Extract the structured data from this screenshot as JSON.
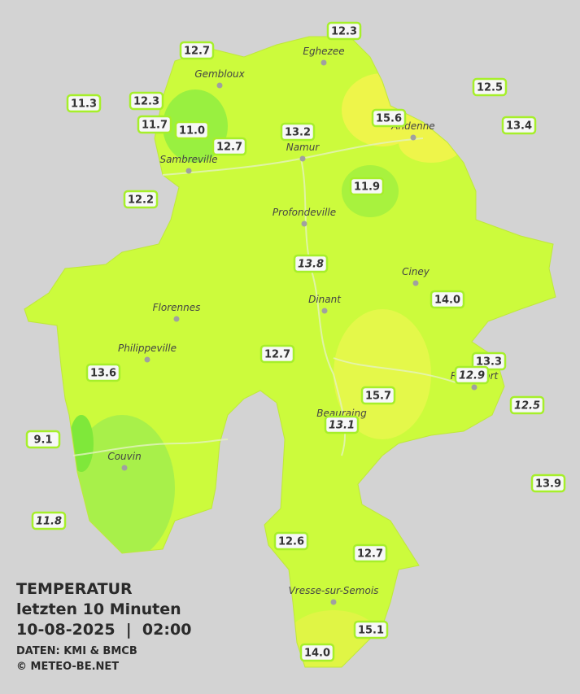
{
  "legend": {
    "title": "TEMPERATUR",
    "period": "letzten 10 Minuten",
    "datetime": "10-08-2025  |  02:00",
    "source": "DATEN: KMI & BMCB",
    "copyright": "© METEO-BE.NET"
  },
  "places": [
    "Eghezee",
    "Gembloux",
    "Andenne",
    "Namur",
    "Sambreville",
    "Profondeville",
    "Ciney",
    "Dinant",
    "Florennes",
    "Philippeville",
    "Rochefort",
    "Beauraing",
    "Couvin",
    "Vresse-sur-Semois"
  ],
  "stations": [
    {
      "temp": "12.3"
    },
    {
      "temp": "12.7"
    },
    {
      "temp": "12.5"
    },
    {
      "temp": "11.3"
    },
    {
      "temp": "12.3"
    },
    {
      "temp": "11.7"
    },
    {
      "temp": "11.0"
    },
    {
      "temp": "15.6"
    },
    {
      "temp": "13.2"
    },
    {
      "temp": "13.4"
    },
    {
      "temp": "12.7"
    },
    {
      "temp": "11.9"
    },
    {
      "temp": "12.2"
    },
    {
      "temp": "13.8",
      "italic": true
    },
    {
      "temp": "14.0"
    },
    {
      "temp": "12.7"
    },
    {
      "temp": "13.3"
    },
    {
      "temp": "12.9",
      "italic": true
    },
    {
      "temp": "13.6"
    },
    {
      "temp": "15.7"
    },
    {
      "temp": "12.5",
      "italic": true
    },
    {
      "temp": "13.1",
      "italic": true
    },
    {
      "temp": "9.1"
    },
    {
      "temp": "13.9"
    },
    {
      "temp": "11.8",
      "italic": true
    },
    {
      "temp": "12.6"
    },
    {
      "temp": "12.7"
    },
    {
      "temp": "15.1"
    },
    {
      "temp": "14.0"
    }
  ]
}
